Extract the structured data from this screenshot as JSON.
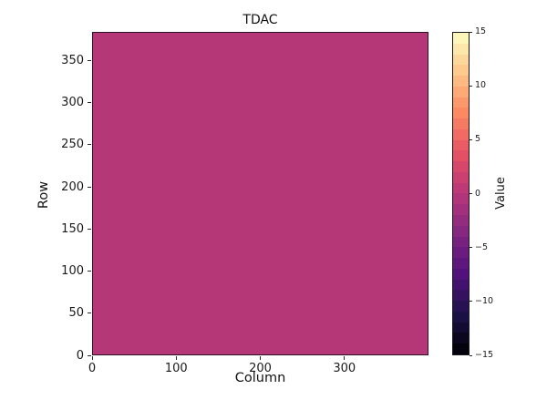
{
  "figure": {
    "background": "#ffffff"
  },
  "chart_data": {
    "type": "heatmap",
    "title": "TDAC",
    "xlabel": "Column",
    "ylabel": "Row",
    "colorbar_label": "Value",
    "x_range": [
      0,
      400
    ],
    "y_range": [
      0,
      384
    ],
    "x_ticks": [
      0,
      100,
      200,
      300
    ],
    "y_ticks": [
      0,
      50,
      100,
      150,
      200,
      250,
      300,
      350
    ],
    "colorbar_ticks": [
      15,
      10,
      5,
      0,
      -5,
      -10,
      -15
    ],
    "colorbar_range": [
      -15,
      15
    ],
    "colorbar_steps": 30,
    "colormap": "magma",
    "colormap_stops": [
      {
        "t": 0.0,
        "color": "#000004"
      },
      {
        "t": 0.125,
        "color": "#1d1147"
      },
      {
        "t": 0.25,
        "color": "#51127c"
      },
      {
        "t": 0.375,
        "color": "#822681"
      },
      {
        "t": 0.5,
        "color": "#b73779"
      },
      {
        "t": 0.625,
        "color": "#e65164"
      },
      {
        "t": 0.75,
        "color": "#fb8961"
      },
      {
        "t": 0.875,
        "color": "#fec68a"
      },
      {
        "t": 1.0,
        "color": "#fcfdbf"
      }
    ],
    "uniform_value": 0,
    "fill_color": "#b53778",
    "grid": false,
    "legend_position": "colorbar-right"
  }
}
